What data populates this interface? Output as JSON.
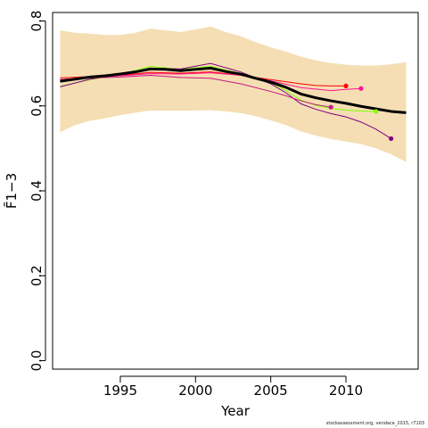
{
  "chart_data": {
    "type": "line",
    "xlabel": "Year",
    "ylabel": "F̄1−3",
    "xlim": [
      1990.5,
      2014.8
    ],
    "ylim": [
      -0.02,
      0.82
    ],
    "x_ticks": [
      "1995",
      "2000",
      "2005",
      "2010"
    ],
    "y_ticks": [
      "0.0",
      "0.2",
      "0.4",
      "0.6",
      "0.8"
    ],
    "grid": false,
    "band": {
      "color": "#f5deb3",
      "x": [
        1991,
        1992,
        1993,
        1994,
        1995,
        1996,
        1997,
        1998,
        1999,
        2000,
        2001,
        2002,
        2003,
        2004,
        2005,
        2006,
        2007,
        2008,
        2009,
        2010,
        2011,
        2012,
        2013,
        2014
      ],
      "upper": [
        0.778,
        0.772,
        0.77,
        0.767,
        0.767,
        0.772,
        0.782,
        0.778,
        0.774,
        0.78,
        0.787,
        0.774,
        0.764,
        0.75,
        0.738,
        0.728,
        0.716,
        0.707,
        0.701,
        0.697,
        0.695,
        0.695,
        0.698,
        0.703
      ],
      "lower": [
        0.538,
        0.555,
        0.565,
        0.571,
        0.578,
        0.584,
        0.589,
        0.589,
        0.589,
        0.589,
        0.59,
        0.587,
        0.583,
        0.576,
        0.566,
        0.555,
        0.54,
        0.53,
        0.522,
        0.516,
        0.51,
        0.5,
        0.486,
        0.468
      ]
    },
    "main_series": {
      "color": "#000000",
      "x": [
        1991,
        1992,
        1993,
        1994,
        1995,
        1996,
        1997,
        1998,
        1999,
        2000,
        2001,
        2002,
        2003,
        2004,
        2005,
        2006,
        2007,
        2008,
        2009,
        2010,
        2011,
        2012,
        2013,
        2014
      ],
      "values": [
        0.658,
        0.663,
        0.668,
        0.671,
        0.675,
        0.68,
        0.687,
        0.686,
        0.683,
        0.686,
        0.689,
        0.681,
        0.675,
        0.665,
        0.656,
        0.644,
        0.628,
        0.619,
        0.612,
        0.606,
        0.599,
        0.593,
        0.587,
        0.584
      ]
    },
    "series": [
      {
        "color": "#ff0000",
        "x": [
          1991,
          1993,
          1995,
          1997,
          1999,
          2001,
          2003,
          2005,
          2007,
          2008,
          2009,
          2010
        ],
        "values": [
          0.666,
          0.669,
          0.672,
          0.679,
          0.677,
          0.68,
          0.672,
          0.662,
          0.652,
          0.648,
          0.647,
          0.647
        ],
        "end_marker": true
      },
      {
        "color": "#ff1493",
        "x": [
          1991,
          1993,
          1995,
          1997,
          1999,
          2001,
          2003,
          2005,
          2007,
          2009,
          2010,
          2011
        ],
        "values": [
          0.662,
          0.667,
          0.671,
          0.676,
          0.675,
          0.678,
          0.672,
          0.659,
          0.643,
          0.636,
          0.639,
          0.641
        ],
        "end_marker": true
      },
      {
        "color": "#7fff00",
        "x": [
          1991,
          1993,
          1995,
          1997,
          1999,
          2001,
          2003,
          2005,
          2006,
          2007,
          2008,
          2009,
          2010,
          2011,
          2012
        ],
        "values": [
          0.646,
          0.662,
          0.674,
          0.693,
          0.686,
          0.693,
          0.676,
          0.655,
          0.636,
          0.614,
          0.601,
          0.594,
          0.59,
          0.588,
          0.587
        ],
        "end_marker": true
      },
      {
        "color": "#800080",
        "x": [
          1991,
          1993,
          1995,
          1997,
          1999,
          2001,
          2003,
          2005,
          2006,
          2007,
          2008,
          2009,
          2010,
          2011,
          2012,
          2013
        ],
        "values": [
          0.645,
          0.663,
          0.674,
          0.689,
          0.687,
          0.7,
          0.68,
          0.652,
          0.631,
          0.605,
          0.592,
          0.582,
          0.574,
          0.562,
          0.545,
          0.523
        ],
        "end_marker": true
      },
      {
        "color": "#c71585",
        "x": [
          1991,
          1993,
          1995,
          1997,
          1999,
          2001,
          2003,
          2005,
          2006,
          2007,
          2008,
          2009
        ],
        "values": [
          0.662,
          0.666,
          0.668,
          0.672,
          0.667,
          0.665,
          0.652,
          0.634,
          0.624,
          0.612,
          0.603,
          0.597
        ],
        "end_marker": true
      }
    ]
  },
  "credit": "stockassessment.org,  vendace_2015, r7103"
}
